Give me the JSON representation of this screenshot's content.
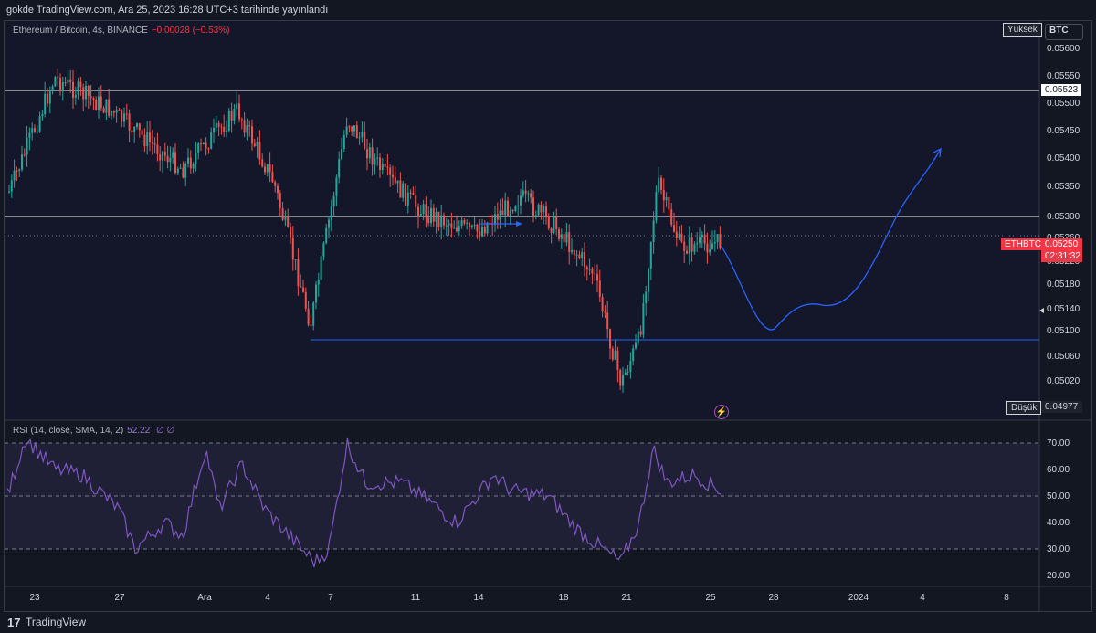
{
  "header": {
    "publish_text": "gokde TradingView.com, Ara 25, 2023 16:28 UTC+3 tarihinde yayınlandı"
  },
  "legend": {
    "symbol": "Ethereum / Bitcoin, 4s, BINANCE",
    "change": "−0.00028 (−0.53%)"
  },
  "rsi_legend": {
    "label": "RSI (14, close, SMA, 14, 2)",
    "value": "52.22",
    "extra": "∅ ∅"
  },
  "price_axis": {
    "currency": "BTC",
    "labels": [
      "0.05600",
      "0.05550",
      "0.05500",
      "0.05450",
      "0.05400",
      "0.05350",
      "0.05300",
      "0.05260",
      "0.05220",
      "0.05180",
      "0.05140",
      "0.05100",
      "0.05060",
      "0.05020"
    ],
    "high_tag": "Yüksek",
    "low_tag": "Düşük",
    "low_value": "0.04977",
    "resistance_value": "0.05523",
    "symbol_tag": "ETHBTC",
    "last_price": "0.05250",
    "countdown": "02:31:32"
  },
  "rsi_axis": {
    "labels": [
      "70.00",
      "60.00",
      "50.00",
      "40.00",
      "30.00",
      "20.00"
    ]
  },
  "x_axis": {
    "labels": [
      "23",
      "27",
      "Ara",
      "4",
      "7",
      "11",
      "14",
      "18",
      "21",
      "25",
      "28",
      "2024",
      "4",
      "8"
    ]
  },
  "footer": {
    "brand": "TradingView",
    "logo": "17"
  },
  "colors": {
    "bg": "#131722",
    "up": "#26a69a",
    "down": "#ef5350",
    "rsi": "#7e57c2",
    "path": "#2962ff",
    "hline": "#ffffff",
    "support": "#2962ff"
  },
  "chart_data": {
    "type": "candlestick",
    "symbol": "ETHBTC",
    "exchange": "BINANCE",
    "interval": "4s",
    "price_range": [
      0.04977,
      0.0562
    ],
    "horizontal_lines": [
      0.05523,
      0.053,
      0.0509
    ],
    "last_price": 0.0525,
    "high": 0.0562,
    "low": 0.04977,
    "rsi": {
      "length": 14,
      "last": 52.22,
      "levels": [
        70,
        50,
        30
      ]
    },
    "anchor_points": [
      {
        "x": "23",
        "price": 0.0549
      },
      {
        "x": "24",
        "price": 0.0552
      },
      {
        "x": "27",
        "price": 0.0548
      },
      {
        "x": "Ara",
        "price": 0.0541
      },
      {
        "x": "4",
        "price": 0.0549
      },
      {
        "x": "5",
        "price": 0.0535
      },
      {
        "x": "6",
        "price": 0.051
      },
      {
        "x": "7",
        "price": 0.0548
      },
      {
        "x": "9",
        "price": 0.0539
      },
      {
        "x": "11",
        "price": 0.0531
      },
      {
        "x": "14",
        "price": 0.0531
      },
      {
        "x": "16",
        "price": 0.053
      },
      {
        "x": "18",
        "price": 0.0526
      },
      {
        "x": "19",
        "price": 0.0516
      },
      {
        "x": "20",
        "price": 0.0503
      },
      {
        "x": "21",
        "price": 0.051
      },
      {
        "x": "22",
        "price": 0.0534
      },
      {
        "x": "23",
        "price": 0.0523
      },
      {
        "x": "25",
        "price": 0.0525
      }
    ]
  }
}
